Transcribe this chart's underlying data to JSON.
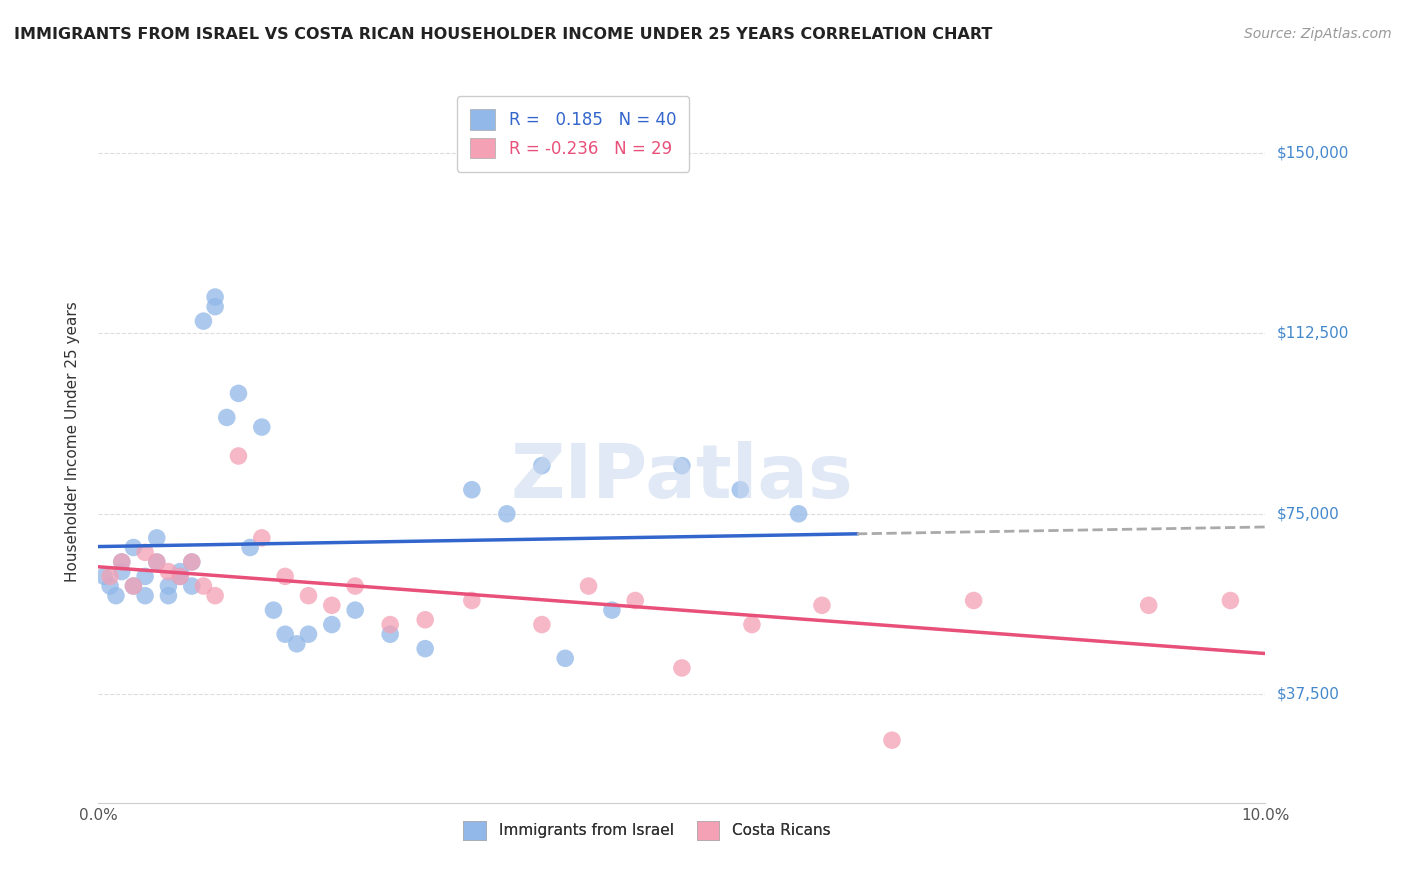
{
  "title": "IMMIGRANTS FROM ISRAEL VS COSTA RICAN HOUSEHOLDER INCOME UNDER 25 YEARS CORRELATION CHART",
  "source": "Source: ZipAtlas.com",
  "ylabel": "Householder Income Under 25 years",
  "xlim": [
    0.0,
    0.1
  ],
  "ylim": [
    15000,
    165000
  ],
  "xticks": [
    0.0,
    0.02,
    0.04,
    0.06,
    0.08,
    0.1
  ],
  "xticklabels": [
    "0.0%",
    "",
    "",
    "",
    "",
    "10.0%"
  ],
  "ytick_positions": [
    37500,
    75000,
    112500,
    150000
  ],
  "ytick_labels": [
    "$37,500",
    "$75,000",
    "$112,500",
    "$150,000"
  ],
  "r_israel": 0.185,
  "n_israel": 40,
  "r_costarica": -0.236,
  "n_costarica": 29,
  "color_israel": "#91b8e8",
  "color_costarica": "#f4a0b5",
  "color_line_israel": "#3366cc",
  "color_line_costarica": "#e8507a",
  "color_trendline_ext": "#aaaaaa",
  "color_yticks": "#4488cc",
  "background_color": "#ffffff",
  "grid_color": "#dddddd",
  "watermark": "ZIPatlas",
  "israel_x": [
    0.0005,
    0.001,
    0.0015,
    0.002,
    0.002,
    0.003,
    0.003,
    0.004,
    0.004,
    0.005,
    0.005,
    0.006,
    0.006,
    0.007,
    0.007,
    0.008,
    0.008,
    0.009,
    0.01,
    0.01,
    0.011,
    0.012,
    0.013,
    0.014,
    0.015,
    0.016,
    0.017,
    0.018,
    0.02,
    0.022,
    0.025,
    0.028,
    0.032,
    0.035,
    0.038,
    0.04,
    0.044,
    0.05,
    0.055,
    0.06
  ],
  "israel_y": [
    62000,
    60000,
    58000,
    65000,
    63000,
    60000,
    68000,
    62000,
    58000,
    65000,
    70000,
    60000,
    58000,
    62000,
    63000,
    65000,
    60000,
    115000,
    118000,
    120000,
    95000,
    100000,
    68000,
    93000,
    55000,
    50000,
    48000,
    50000,
    52000,
    55000,
    50000,
    47000,
    80000,
    75000,
    85000,
    45000,
    55000,
    85000,
    80000,
    75000
  ],
  "costarica_x": [
    0.001,
    0.002,
    0.003,
    0.004,
    0.005,
    0.006,
    0.007,
    0.008,
    0.009,
    0.01,
    0.012,
    0.014,
    0.016,
    0.018,
    0.02,
    0.022,
    0.025,
    0.028,
    0.032,
    0.038,
    0.042,
    0.046,
    0.05,
    0.056,
    0.062,
    0.068,
    0.075,
    0.09,
    0.097
  ],
  "costarica_y": [
    62000,
    65000,
    60000,
    67000,
    65000,
    63000,
    62000,
    65000,
    60000,
    58000,
    87000,
    70000,
    62000,
    58000,
    56000,
    60000,
    52000,
    53000,
    57000,
    52000,
    60000,
    57000,
    43000,
    52000,
    56000,
    28000,
    57000,
    56000,
    57000
  ]
}
